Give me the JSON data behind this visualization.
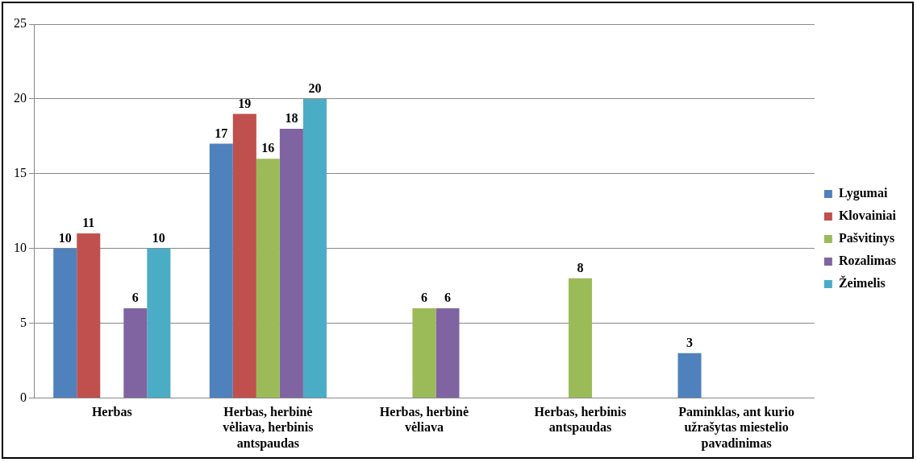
{
  "chart_data": {
    "type": "bar",
    "categories": [
      "Herbas",
      "Herbas, herbinė vėliava, herbinis antspaudas",
      "Herbas, herbinė vėliava",
      "Herbas, herbinis antspaudas",
      "Paminklas, ant kurio užrašytas miestelio pavadinimas"
    ],
    "series": [
      {
        "name": "Lygumai",
        "color": "#4f81bd",
        "values": [
          10,
          17,
          null,
          null,
          3
        ]
      },
      {
        "name": "Klovainiai",
        "color": "#c0504d",
        "values": [
          11,
          19,
          null,
          null,
          null
        ]
      },
      {
        "name": "Pašvitinys",
        "color": "#9bbb59",
        "values": [
          null,
          16,
          6,
          8,
          null
        ]
      },
      {
        "name": "Rozalimas",
        "color": "#8064a2",
        "values": [
          6,
          18,
          6,
          null,
          null
        ]
      },
      {
        "name": "Žeimelis",
        "color": "#4bacc6",
        "values": [
          10,
          20,
          null,
          null,
          null
        ]
      }
    ],
    "ylim": [
      0,
      25
    ],
    "yticks": [
      0,
      5,
      10,
      15,
      20,
      25
    ],
    "grid": "y",
    "legend": "right",
    "data_labels": true
  }
}
